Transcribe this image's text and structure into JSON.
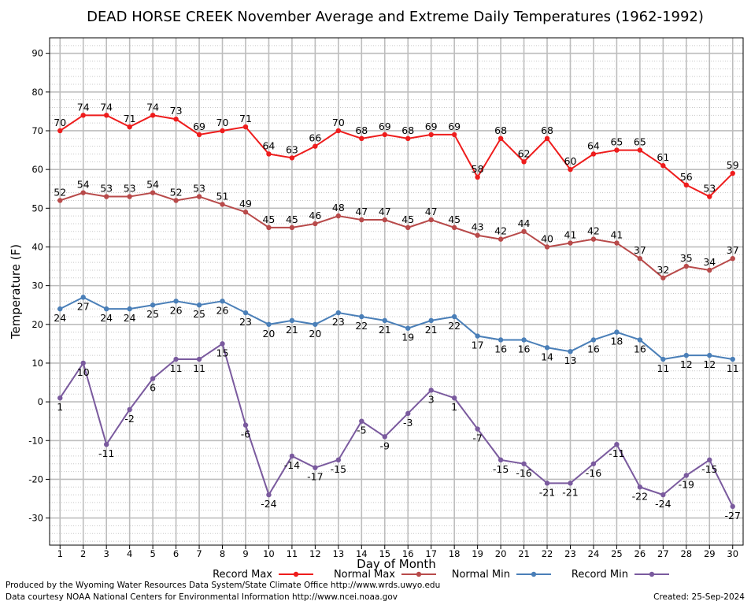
{
  "chart_data": {
    "type": "line",
    "title": "DEAD HORSE CREEK November Average and Extreme Daily Temperatures (1962-1992)",
    "xlabel": "Day of Month",
    "ylabel": "Temperature (F)",
    "x": [
      1,
      2,
      3,
      4,
      5,
      6,
      7,
      8,
      9,
      10,
      11,
      12,
      13,
      14,
      15,
      16,
      17,
      18,
      19,
      20,
      21,
      22,
      23,
      24,
      25,
      26,
      27,
      28,
      29,
      30
    ],
    "xlim": [
      0.55,
      30.45
    ],
    "ylim": [
      -37,
      94
    ],
    "yticks": [
      -30,
      -20,
      -10,
      0,
      10,
      20,
      30,
      40,
      50,
      60,
      70,
      80,
      90
    ],
    "grid": true,
    "legend_position": "bottom",
    "series": [
      {
        "name": "Record Max",
        "color": "#ee1c1c",
        "values": [
          70,
          74,
          74,
          71,
          74,
          73,
          69,
          70,
          71,
          64,
          63,
          66,
          70,
          68,
          69,
          68,
          69,
          69,
          58,
          68,
          62,
          68,
          60,
          64,
          65,
          65,
          61,
          56,
          53,
          59
        ]
      },
      {
        "name": "Normal Max",
        "color": "#b84a4a",
        "values": [
          52,
          54,
          53,
          53,
          54,
          52,
          53,
          51,
          49,
          45,
          45,
          46,
          48,
          47,
          47,
          45,
          47,
          45,
          43,
          42,
          44,
          40,
          41,
          42,
          41,
          37,
          32,
          35,
          34,
          37
        ]
      },
      {
        "name": "Normal Min",
        "color": "#4a7fb8",
        "values": [
          24,
          27,
          24,
          24,
          25,
          26,
          25,
          26,
          23,
          20,
          21,
          20,
          23,
          22,
          21,
          19,
          21,
          22,
          17,
          16,
          16,
          14,
          13,
          16,
          18,
          16,
          11,
          12,
          12,
          11
        ]
      },
      {
        "name": "Record Min",
        "color": "#7a5a9e",
        "values": [
          1,
          10,
          -11,
          -2,
          6,
          11,
          11,
          15,
          -6,
          -24,
          -14,
          -17,
          -15,
          -5,
          -9,
          -3,
          3,
          1,
          -7,
          -15,
          -16,
          -21,
          -21,
          -16,
          -11,
          -22,
          -24,
          -19,
          -15,
          -27
        ]
      }
    ]
  },
  "footer": {
    "produced_by": "Produced by the Wyoming Water Resources Data System/State Climate Office http://www.wrds.uwyo.edu",
    "courtesy": "Data courtesy NOAA National Centers for Environmental Information http://www.ncei.noaa.gov",
    "created": "Created:  25-Sep-2024"
  }
}
